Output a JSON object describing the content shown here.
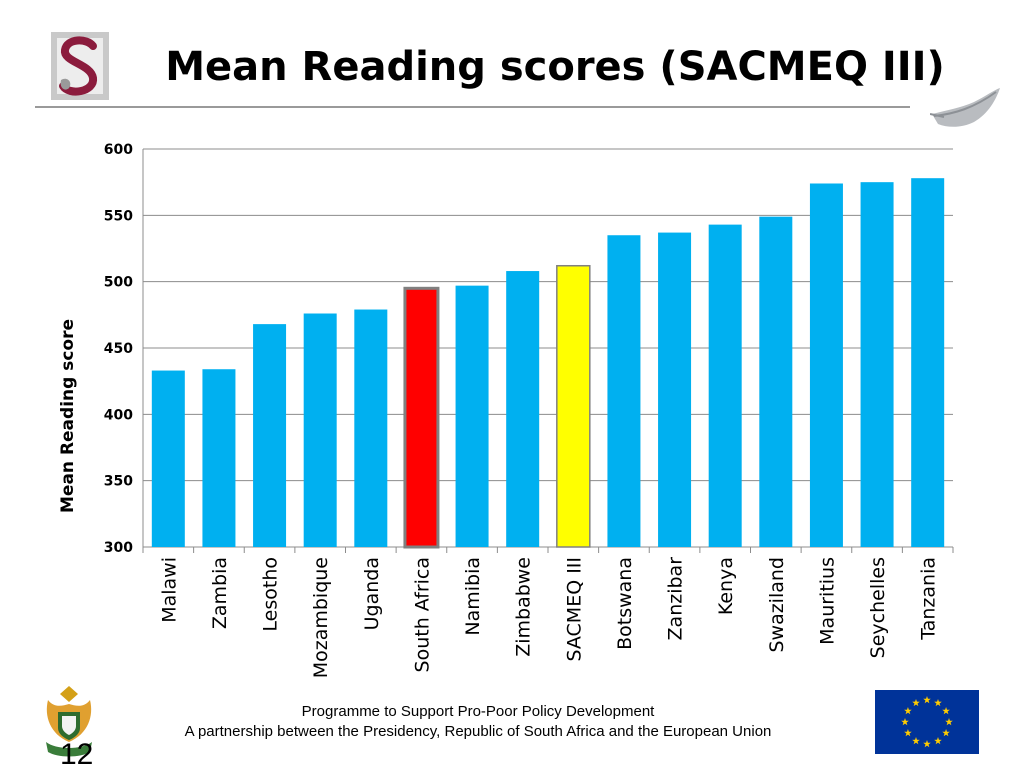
{
  "title": "Mean Reading scores (SACMEQ III)",
  "page_number": "12",
  "footer": {
    "line1": "Programme to Support Pro-Poor Policy Development",
    "line2": "A partnership between the Presidency, Republic of South Africa and the European Union"
  },
  "icons": {
    "university_logo": "stellenbosch-s-logo-icon",
    "feather": "feather-icon",
    "coat_of_arms": "south-africa-coat-of-arms-icon",
    "eu_flag": "eu-flag-icon"
  },
  "colors": {
    "bar": "#00B0F0",
    "highlight_south_africa": "#FF0000",
    "highlight_sacmeq": "#FFFF00",
    "highlight_border": "#808080",
    "eu_blue": "#003399",
    "eu_star": "#FFCC00",
    "logo_maroon": "#8B1C3D"
  },
  "chart_data": {
    "type": "bar",
    "title": "",
    "xlabel": "",
    "ylabel": "Mean Reading score",
    "ylim": [
      300,
      600
    ],
    "yticks": [
      "300",
      "350",
      "400",
      "450",
      "500",
      "550",
      "600"
    ],
    "grid": true,
    "legend": "none",
    "categories": [
      "Malawi",
      "Zambia",
      "Lesotho",
      "Mozambique",
      "Uganda",
      "South Africa",
      "Namibia",
      "Zimbabwe",
      "SACMEQ III",
      "Botswana",
      "Zanzibar",
      "Kenya",
      "Swaziland",
      "Mauritius",
      "Seychelles",
      "Tanzania"
    ],
    "values": [
      433,
      434,
      468,
      476,
      479,
      495,
      497,
      508,
      512,
      535,
      537,
      543,
      549,
      574,
      575,
      578
    ],
    "highlight": {
      "South Africa": "red",
      "SACMEQ III": "yellow"
    }
  }
}
